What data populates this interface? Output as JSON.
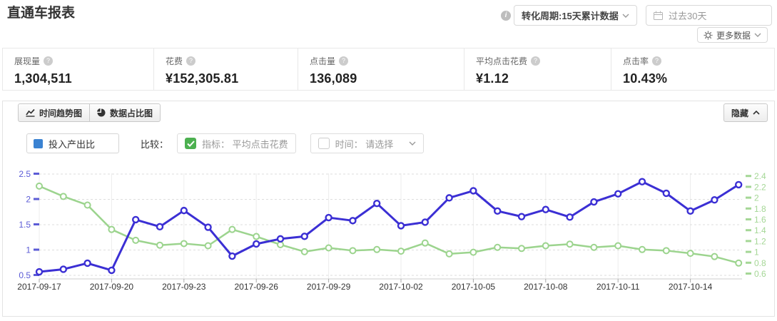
{
  "header": {
    "title": "直通车报表",
    "cycle_select": "转化周期:15天累计数据",
    "date_range": "过去30天",
    "more_data": "更多数据"
  },
  "stats": [
    {
      "label": "展现量",
      "value": "1,304,511"
    },
    {
      "label": "花费",
      "value": "¥152,305.81"
    },
    {
      "label": "点击量",
      "value": "136,089"
    },
    {
      "label": "平均点击花费",
      "value": "¥1.12"
    },
    {
      "label": "点击率",
      "value": "10.43%"
    }
  ],
  "tabs": {
    "trend": "时间趋势图",
    "pie": "数据占比图",
    "hide": "隐藏"
  },
  "controls": {
    "metric_label": "投入产出比",
    "compare_label": "比较：",
    "indicator_checkbox": "指标： 平均点击花费",
    "time_checkbox": "时间： 请选择"
  },
  "colors": {
    "legend_blue": "#3a82d2",
    "checkbox_green": "#4cb050",
    "roi_line": "#3b2fd4",
    "cpc_line": "#9cd48e"
  },
  "chart_data": {
    "type": "line",
    "x": [
      "2017-09-17",
      "2017-09-18",
      "2017-09-19",
      "2017-09-20",
      "2017-09-21",
      "2017-09-22",
      "2017-09-23",
      "2017-09-24",
      "2017-09-25",
      "2017-09-26",
      "2017-09-27",
      "2017-09-28",
      "2017-09-29",
      "2017-09-30",
      "2017-10-01",
      "2017-10-02",
      "2017-10-03",
      "2017-10-04",
      "2017-10-05",
      "2017-10-06",
      "2017-10-07",
      "2017-10-08",
      "2017-10-09",
      "2017-10-10",
      "2017-10-11",
      "2017-10-12",
      "2017-10-13",
      "2017-10-14",
      "2017-10-15",
      "2017-10-16"
    ],
    "x_label_every": 3,
    "series": [
      {
        "name": "投入产出比",
        "axis": "left",
        "color": "#3b2fd4",
        "values": [
          0.57,
          0.62,
          0.74,
          0.6,
          1.6,
          1.46,
          1.78,
          1.45,
          0.88,
          1.12,
          1.22,
          1.27,
          1.64,
          1.58,
          1.92,
          1.48,
          1.55,
          2.03,
          2.17,
          1.77,
          1.66,
          1.8,
          1.65,
          1.95,
          2.11,
          2.35,
          2.12,
          1.77,
          1.99,
          2.29
        ]
      },
      {
        "name": "平均点击花费",
        "axis": "right",
        "color": "#9cd48e",
        "values": [
          2.22,
          2.03,
          1.87,
          1.42,
          1.22,
          1.13,
          1.16,
          1.12,
          1.42,
          1.29,
          1.14,
          1.01,
          1.08,
          1.03,
          1.05,
          1.02,
          1.17,
          0.97,
          1.0,
          1.09,
          1.07,
          1.12,
          1.15,
          1.09,
          1.12,
          1.05,
          1.03,
          0.98,
          0.92,
          0.8
        ]
      }
    ],
    "left_axis": {
      "min": 0.5,
      "max": 2.5,
      "ticks": [
        0.5,
        1,
        1.5,
        2,
        2.5
      ],
      "color": "#5b5bd6"
    },
    "right_axis": {
      "min": 0.6,
      "max": 2.4,
      "ticks": [
        0.6,
        0.8,
        1,
        1.2,
        1.4,
        1.6,
        1.8,
        2,
        2.2,
        2.4
      ],
      "color": "#a5d796"
    },
    "grid": true,
    "legend_position": "top-left"
  }
}
